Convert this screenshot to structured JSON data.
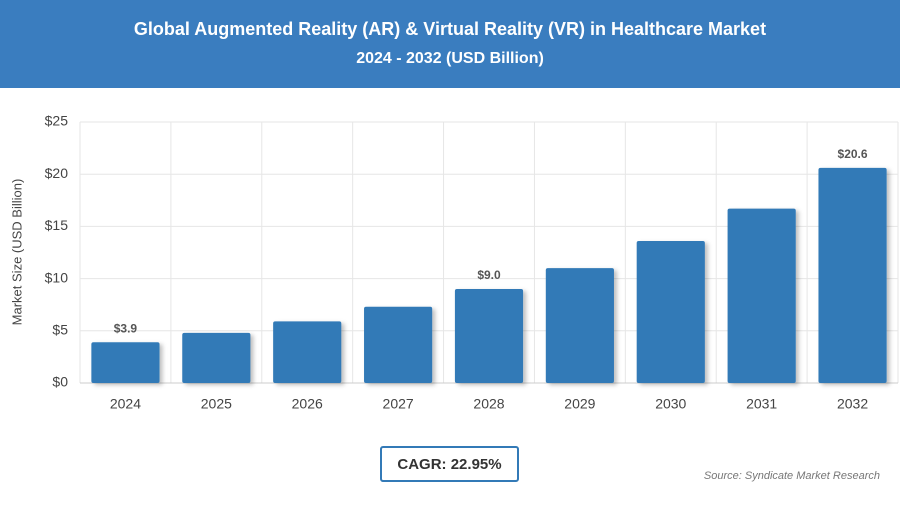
{
  "chart_data": {
    "type": "bar",
    "title": "Global Augmented Reality (AR) & Virtual Reality (VR) in Healthcare Market",
    "subtitle": "2024 - 2032 (USD Billion)",
    "y_label": "Market Size (USD Billion)",
    "categories": [
      "2024",
      "2025",
      "2026",
      "2027",
      "2028",
      "2029",
      "2030",
      "2031",
      "2032"
    ],
    "values": [
      3.9,
      4.8,
      5.9,
      7.3,
      9.0,
      11.0,
      13.6,
      16.7,
      20.6
    ],
    "value_labels": [
      "$3.9",
      null,
      null,
      null,
      "$9.0",
      null,
      null,
      null,
      "$20.6"
    ],
    "color": "#337ab7",
    "ylim": [
      0,
      25
    ],
    "yticks": [
      {
        "value": 0,
        "label": "$0"
      },
      {
        "value": 5,
        "label": "$5"
      },
      {
        "value": 10,
        "label": "$10"
      },
      {
        "value": 15,
        "label": "$15"
      },
      {
        "value": 20,
        "label": "$20"
      },
      {
        "value": 25,
        "label": "$25"
      }
    ],
    "grid": true,
    "cagr": "CAGR: 22.95%",
    "source": "Source: Syndicate Market Research"
  }
}
